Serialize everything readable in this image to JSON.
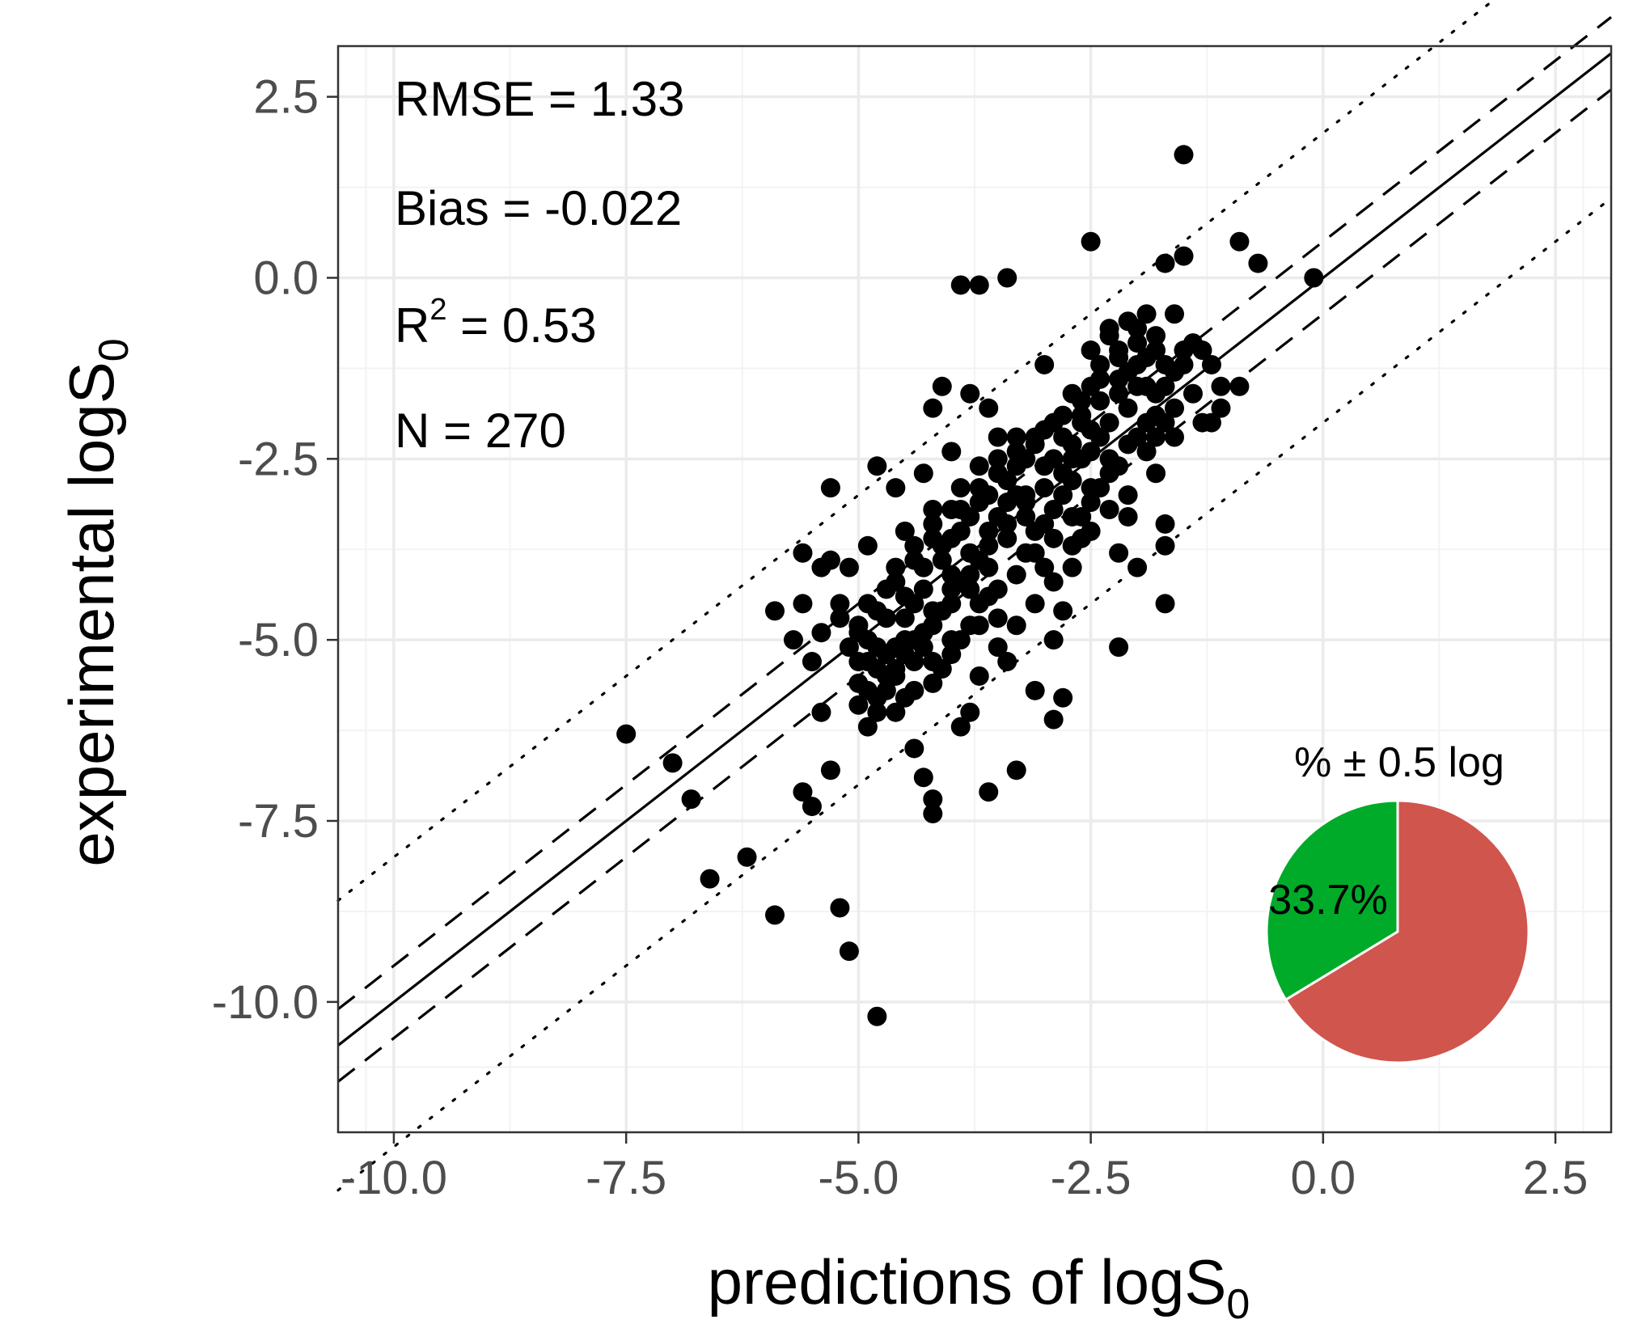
{
  "chart_data": {
    "type": "scatter",
    "xlabel": "predictions of logS",
    "xlabel_sub": "0",
    "ylabel": "experimental logS",
    "ylabel_sub": "0",
    "xlim": [
      -10.6,
      3.1
    ],
    "ylim": [
      -11.8,
      3.2
    ],
    "x_ticks": [
      -10.0,
      -7.5,
      -5.0,
      -2.5,
      0.0,
      2.5
    ],
    "x_tick_labels": [
      "-10.0",
      "-7.5",
      "-5.0",
      "-2.5",
      "0.0",
      "2.5"
    ],
    "y_ticks": [
      -10.0,
      -7.5,
      -5.0,
      -2.5,
      0.0,
      2.5
    ],
    "y_tick_labels": [
      "-10.0",
      "-7.5",
      "-5.0",
      "-2.5",
      "0.0",
      "2.5"
    ],
    "grid": true,
    "annotations": {
      "rmse": "RMSE = 1.33",
      "bias": "Bias = -0.022",
      "r2_prefix": "R",
      "r2_sup": "2",
      "r2_suffix": " = 0.53",
      "n": "N = 270"
    },
    "reference_lines": [
      {
        "name": "identity",
        "offset": 0,
        "style": "solid"
      },
      {
        "name": "upper-dashed",
        "offset": 0.5,
        "style": "dashed"
      },
      {
        "name": "lower-dashed",
        "offset": -0.5,
        "style": "dashed"
      },
      {
        "name": "upper-dotted",
        "offset": 2.0,
        "style": "dotted"
      },
      {
        "name": "lower-dotted",
        "offset": -2.0,
        "style": "dotted"
      }
    ],
    "points": [
      [
        -7.5,
        -6.3
      ],
      [
        -7.0,
        -6.7
      ],
      [
        -6.8,
        -7.2
      ],
      [
        -6.6,
        -8.3
      ],
      [
        -6.2,
        -8.0
      ],
      [
        -5.9,
        -8.8
      ],
      [
        -5.2,
        -8.7
      ],
      [
        -5.1,
        -9.3
      ],
      [
        -4.8,
        -10.2
      ],
      [
        -5.9,
        -4.6
      ],
      [
        -5.7,
        -5.0
      ],
      [
        -5.6,
        -7.1
      ],
      [
        -5.5,
        -7.3
      ],
      [
        -5.3,
        -6.8
      ],
      [
        -5.4,
        -6.0
      ],
      [
        -5.5,
        -5.3
      ],
      [
        -5.6,
        -4.5
      ],
      [
        -5.4,
        -4.0
      ],
      [
        -5.2,
        -4.5
      ],
      [
        -5.0,
        -4.8
      ],
      [
        -4.9,
        -5.3
      ],
      [
        -4.8,
        -6.0
      ],
      [
        -4.7,
        -5.7
      ],
      [
        -4.9,
        -6.2
      ],
      [
        -4.6,
        -5.5
      ],
      [
        -4.5,
        -5.0
      ],
      [
        -4.4,
        -4.5
      ],
      [
        -4.3,
        -4.0
      ],
      [
        -4.5,
        -3.5
      ],
      [
        -4.2,
        -3.2
      ],
      [
        -4.0,
        -3.6
      ],
      [
        -3.9,
        -4.2
      ],
      [
        -4.1,
        -4.6
      ],
      [
        -4.3,
        -5.1
      ],
      [
        -4.2,
        -5.6
      ],
      [
        -4.0,
        -5.2
      ],
      [
        -3.8,
        -4.8
      ],
      [
        -3.6,
        -4.4
      ],
      [
        -3.7,
        -3.9
      ],
      [
        -3.5,
        -3.3
      ],
      [
        -3.4,
        -2.8
      ],
      [
        -3.2,
        -2.5
      ],
      [
        -3.3,
        -3.0
      ],
      [
        -3.1,
        -3.5
      ],
      [
        -3.0,
        -4.0
      ],
      [
        -2.9,
        -3.2
      ],
      [
        -2.8,
        -2.7
      ],
      [
        -2.7,
        -2.3
      ],
      [
        -2.6,
        -2.0
      ],
      [
        -2.5,
        -1.5
      ],
      [
        -2.4,
        -1.2
      ],
      [
        -2.3,
        -0.8
      ],
      [
        -2.2,
        -1.0
      ],
      [
        -2.1,
        -1.3
      ],
      [
        -2.0,
        -0.7
      ],
      [
        -1.9,
        -1.1
      ],
      [
        -1.8,
        -0.8
      ],
      [
        -1.7,
        -1.5
      ],
      [
        -1.6,
        -1.8
      ],
      [
        -1.5,
        -1.2
      ],
      [
        -1.4,
        -1.6
      ],
      [
        -1.3,
        -1.0
      ],
      [
        -1.2,
        -2.0
      ],
      [
        -1.1,
        -1.5
      ],
      [
        -2.0,
        -2.2
      ],
      [
        -2.2,
        -2.6
      ],
      [
        -2.4,
        -2.9
      ],
      [
        -2.6,
        -3.3
      ],
      [
        -2.1,
        -3.0
      ],
      [
        -1.9,
        -2.4
      ],
      [
        -1.7,
        -2.0
      ],
      [
        -1.8,
        -2.7
      ],
      [
        -1.6,
        -0.5
      ],
      [
        -1.5,
        0.3
      ],
      [
        -1.7,
        0.2
      ],
      [
        -1.5,
        1.7
      ],
      [
        -0.9,
        0.5
      ],
      [
        -0.7,
        0.2
      ],
      [
        -0.1,
        0.0
      ],
      [
        -2.5,
        0.5
      ],
      [
        -3.4,
        0.0
      ],
      [
        -3.9,
        -0.1
      ],
      [
        -3.7,
        -0.1
      ],
      [
        -3.0,
        -1.2
      ],
      [
        -3.6,
        -1.8
      ],
      [
        -3.8,
        -1.6
      ],
      [
        -4.1,
        -1.5
      ],
      [
        -4.2,
        -1.8
      ],
      [
        -4.0,
        -2.4
      ],
      [
        -4.3,
        -2.7
      ],
      [
        -4.6,
        -2.9
      ],
      [
        -4.8,
        -2.6
      ],
      [
        -5.3,
        -2.9
      ],
      [
        -4.9,
        -3.7
      ],
      [
        -5.1,
        -4.0
      ],
      [
        -5.3,
        -3.9
      ],
      [
        -5.6,
        -3.8
      ],
      [
        -5.4,
        -4.9
      ],
      [
        -5.2,
        -4.7
      ],
      [
        -5.0,
        -5.6
      ],
      [
        -4.8,
        -5.8
      ],
      [
        -4.6,
        -6.0
      ],
      [
        -4.4,
        -6.5
      ],
      [
        -4.3,
        -6.9
      ],
      [
        -4.2,
        -7.2
      ],
      [
        -4.2,
        -7.4
      ],
      [
        -3.9,
        -6.2
      ],
      [
        -3.8,
        -6.0
      ],
      [
        -3.6,
        -7.1
      ],
      [
        -3.3,
        -6.8
      ],
      [
        -3.4,
        -5.3
      ],
      [
        -3.1,
        -5.7
      ],
      [
        -2.9,
        -6.1
      ],
      [
        -2.8,
        -5.8
      ],
      [
        -2.9,
        -5.0
      ],
      [
        -2.8,
        -4.6
      ],
      [
        -2.7,
        -4.0
      ],
      [
        -2.6,
        -3.6
      ],
      [
        -2.2,
        -5.1
      ],
      [
        -2.2,
        -3.8
      ],
      [
        -2.0,
        -4.0
      ],
      [
        -1.7,
        -4.5
      ],
      [
        -1.7,
        -3.7
      ],
      [
        -1.7,
        -3.4
      ],
      [
        -1.8,
        -2.2
      ],
      [
        -1.3,
        -2.0
      ],
      [
        -1.1,
        -1.8
      ],
      [
        -0.9,
        -1.5
      ],
      [
        -1.2,
        -1.2
      ],
      [
        -1.4,
        -0.9
      ],
      [
        -1.9,
        -0.5
      ],
      [
        -2.1,
        -0.6
      ],
      [
        -2.3,
        -0.7
      ],
      [
        -2.5,
        -1.0
      ],
      [
        -2.7,
        -1.6
      ],
      [
        -2.9,
        -2.0
      ],
      [
        -3.1,
        -2.2
      ],
      [
        -3.3,
        -2.4
      ],
      [
        -3.5,
        -2.2
      ],
      [
        -3.7,
        -2.6
      ],
      [
        -3.9,
        -2.9
      ],
      [
        -4.0,
        -3.2
      ],
      [
        -4.2,
        -3.4
      ],
      [
        -4.4,
        -3.7
      ],
      [
        -4.6,
        -4.0
      ],
      [
        -4.7,
        -4.3
      ],
      [
        -4.9,
        -4.5
      ],
      [
        -5.0,
        -4.9
      ],
      [
        -5.1,
        -5.1
      ],
      [
        -4.7,
        -5.2
      ],
      [
        -4.5,
        -4.7
      ],
      [
        -4.3,
        -4.3
      ],
      [
        -4.1,
        -3.9
      ],
      [
        -3.9,
        -3.5
      ],
      [
        -3.7,
        -3.1
      ],
      [
        -3.5,
        -2.7
      ],
      [
        -3.2,
        -3.1
      ],
      [
        -3.0,
        -2.6
      ],
      [
        -2.8,
        -2.2
      ],
      [
        -2.5,
        -2.4
      ],
      [
        -2.3,
        -2.0
      ],
      [
        -2.1,
        -1.8
      ],
      [
        -1.9,
        -1.5
      ],
      [
        -2.0,
        -1.2
      ],
      [
        -2.2,
        -1.4
      ],
      [
        -2.4,
        -1.7
      ],
      [
        -2.6,
        -1.9
      ],
      [
        -3.4,
        -3.6
      ],
      [
        -3.2,
        -3.8
      ],
      [
        -3.6,
        -4.0
      ],
      [
        -3.8,
        -4.3
      ],
      [
        -4.0,
        -4.1
      ],
      [
        -3.7,
        -4.5
      ],
      [
        -3.5,
        -4.7
      ],
      [
        -3.9,
        -5.0
      ],
      [
        -4.1,
        -5.4
      ],
      [
        -4.4,
        -5.3
      ],
      [
        -4.6,
        -5.1
      ],
      [
        -4.8,
        -5.4
      ],
      [
        -5.0,
        -5.9
      ],
      [
        -4.9,
        -5.0
      ],
      [
        -4.7,
        -4.7
      ],
      [
        -4.5,
        -4.4
      ],
      [
        -4.3,
        -4.0
      ],
      [
        -4.1,
        -3.7
      ],
      [
        -3.8,
        -3.3
      ],
      [
        -3.6,
        -3.0
      ],
      [
        -3.3,
        -2.6
      ],
      [
        -3.1,
        -2.3
      ],
      [
        -2.9,
        -2.5
      ],
      [
        -2.7,
        -2.8
      ],
      [
        -2.5,
        -3.1
      ],
      [
        -2.3,
        -2.7
      ],
      [
        -2.4,
        -2.2
      ],
      [
        -2.6,
        -2.5
      ],
      [
        -2.8,
        -3.0
      ],
      [
        -3.0,
        -3.4
      ],
      [
        -3.2,
        -3.3
      ],
      [
        -3.4,
        -3.1
      ],
      [
        -3.6,
        -3.5
      ],
      [
        -3.8,
        -3.8
      ],
      [
        -4.0,
        -4.5
      ],
      [
        -4.2,
        -4.8
      ],
      [
        -4.4,
        -5.0
      ],
      [
        -4.6,
        -5.4
      ],
      [
        -4.8,
        -5.1
      ],
      [
        -5.0,
        -5.3
      ],
      [
        -4.5,
        -5.8
      ],
      [
        -4.4,
        -5.7
      ],
      [
        -4.2,
        -5.3
      ],
      [
        -4.0,
        -5.0
      ],
      [
        -3.7,
        -4.8
      ],
      [
        -3.5,
        -4.3
      ],
      [
        -3.3,
        -4.1
      ],
      [
        -3.1,
        -3.8
      ],
      [
        -2.9,
        -3.6
      ],
      [
        -2.7,
        -3.3
      ],
      [
        -2.5,
        -2.9
      ],
      [
        -2.3,
        -2.5
      ],
      [
        -2.1,
        -2.3
      ],
      [
        -1.9,
        -2.0
      ],
      [
        -1.8,
        -1.6
      ],
      [
        -1.6,
        -1.3
      ],
      [
        -1.8,
        -1.0
      ],
      [
        -2.0,
        -0.9
      ],
      [
        -1.7,
        -1.2
      ],
      [
        -1.5,
        -1.0
      ],
      [
        -2.2,
        -1.6
      ],
      [
        -2.5,
        -2.1
      ],
      [
        -2.7,
        -2.5
      ],
      [
        -3.0,
        -2.9
      ],
      [
        -3.2,
        -3.0
      ],
      [
        -3.4,
        -3.4
      ],
      [
        -3.6,
        -3.7
      ],
      [
        -3.8,
        -4.1
      ],
      [
        -4.0,
        -4.3
      ],
      [
        -4.2,
        -4.6
      ],
      [
        -4.3,
        -4.9
      ],
      [
        -4.5,
        -5.2
      ],
      [
        -4.7,
        -5.5
      ],
      [
        -4.9,
        -5.7
      ],
      [
        -4.8,
        -4.6
      ],
      [
        -4.6,
        -4.2
      ],
      [
        -4.4,
        -3.9
      ],
      [
        -4.2,
        -3.6
      ],
      [
        -3.9,
        -3.2
      ],
      [
        -3.7,
        -2.9
      ],
      [
        -3.5,
        -2.5
      ],
      [
        -3.3,
        -2.2
      ],
      [
        -3.0,
        -2.1
      ],
      [
        -2.8,
        -1.9
      ],
      [
        -2.6,
        -1.7
      ],
      [
        -2.4,
        -1.4
      ],
      [
        -2.2,
        -1.1
      ],
      [
        -2.0,
        -1.5
      ],
      [
        -1.8,
        -1.9
      ],
      [
        -1.6,
        -2.2
      ],
      [
        -2.3,
        -3.2
      ],
      [
        -2.1,
        -3.3
      ],
      [
        -2.5,
        -3.5
      ],
      [
        -2.7,
        -3.7
      ],
      [
        -2.9,
        -4.2
      ],
      [
        -3.1,
        -4.5
      ],
      [
        -3.3,
        -4.8
      ],
      [
        -3.5,
        -5.1
      ],
      [
        -3.7,
        -5.5
      ]
    ],
    "inset_pie": {
      "title": "% ± 0.5 log",
      "label": "33.7%",
      "values": [
        33.7,
        66.3
      ],
      "colors": [
        "#00ab2a",
        "#d0554d"
      ]
    }
  }
}
